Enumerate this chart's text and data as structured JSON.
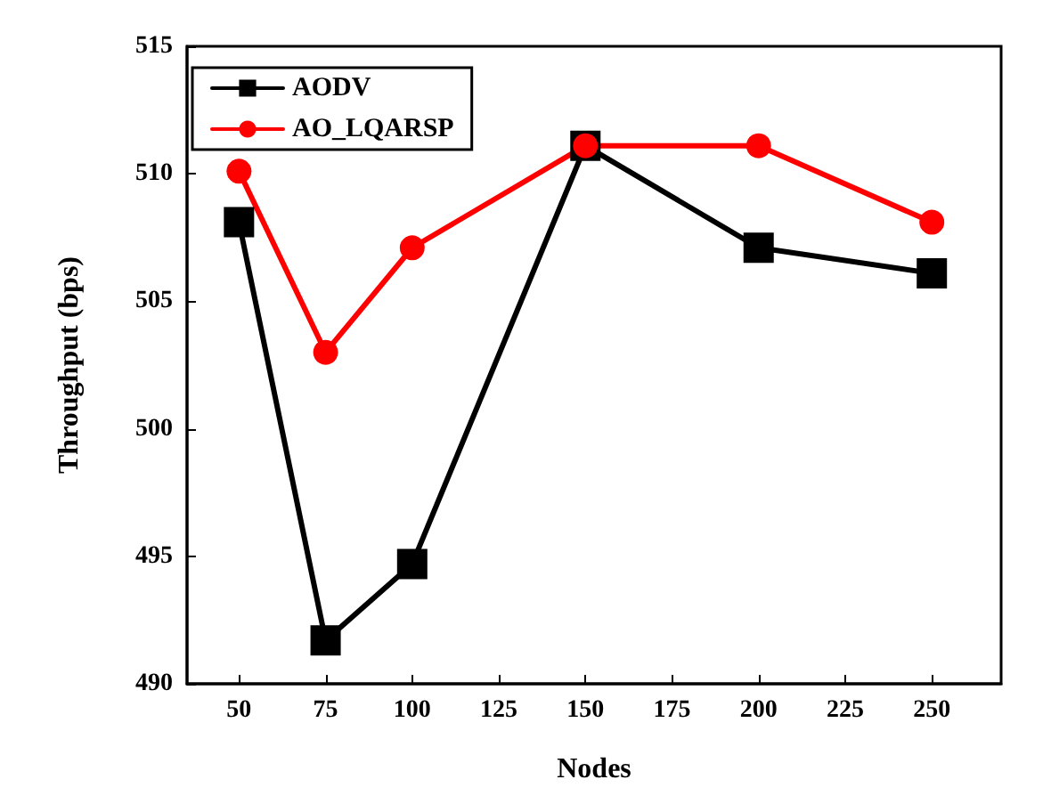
{
  "chart_data": {
    "type": "line",
    "xlabel": "Nodes",
    "ylabel": "Throughput (bps)",
    "x": [
      50,
      75,
      100,
      150,
      200,
      250
    ],
    "series": [
      {
        "name": "AODV",
        "color": "#000000",
        "marker": "square",
        "values": [
          508.1,
          491.7,
          494.7,
          511.1,
          507.1,
          506.1
        ]
      },
      {
        "name": "AO_LQARSP",
        "color": "#ff0000",
        "marker": "circle",
        "values": [
          510.1,
          503.0,
          507.1,
          511.1,
          511.1,
          508.1
        ]
      }
    ],
    "xlim": [
      35,
      270
    ],
    "xticks": [
      50,
      75,
      100,
      125,
      150,
      175,
      200,
      225,
      250
    ],
    "ylim": [
      490,
      515
    ],
    "yticks": [
      490,
      495,
      500,
      505,
      510,
      515
    ],
    "grid": false,
    "legend": "top left",
    "line_style": "solid"
  }
}
